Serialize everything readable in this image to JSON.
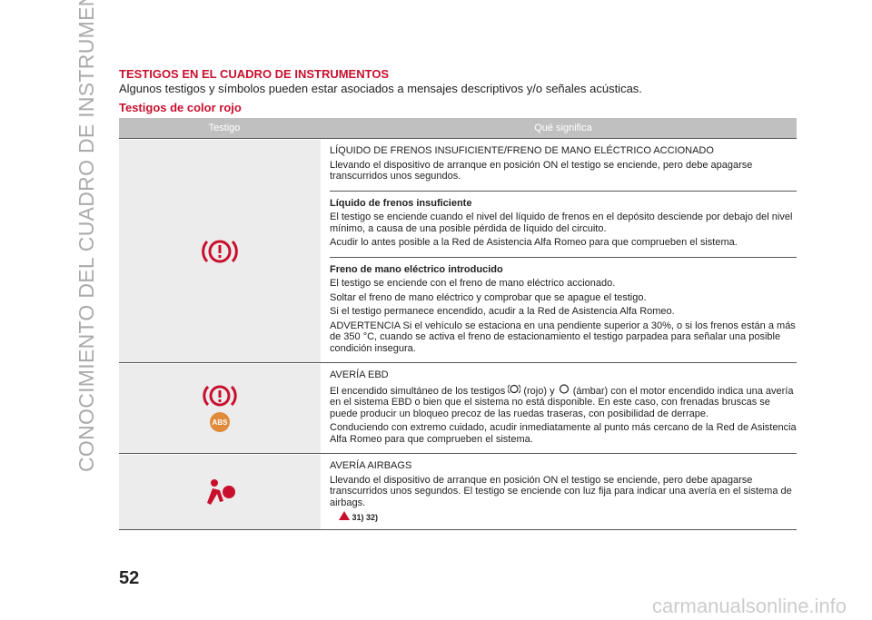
{
  "side_title": "CONOCIMIENTO DEL CUADRO DE INSTRUMENTOS",
  "header": {
    "title": "TESTIGOS EN EL CUADRO DE INSTRUMENTOS",
    "intro": "Algunos testigos y símbolos pueden estar asociados a mensajes descriptivos y/o señales acústicas.",
    "subtitle": "Testigos de color rojo"
  },
  "table": {
    "columns": [
      "Testigo",
      "Qué significa"
    ],
    "rows": [
      {
        "sections": [
          {
            "title": "LÍQUIDO DE FRENOS INSUFICIENTE/FRENO DE MANO ELÉCTRICO ACCIONADO",
            "paragraphs": [
              "Llevando el dispositivo de arranque en posición ON el testigo se enciende, pero debe apagarse transcurridos unos segundos."
            ]
          },
          {
            "title": "Líquido de frenos insuficiente",
            "paragraphs": [
              "El testigo se enciende cuando el nivel del líquido de frenos en el depósito desciende por debajo del nivel mínimo, a causa de una posible pérdida de líquido del circuito.",
              "Acudir lo antes posible a la Red de Asistencia Alfa Romeo para que comprueben el sistema."
            ]
          },
          {
            "title": "Freno de mano eléctrico introducido",
            "paragraphs": [
              "El testigo se enciende con el freno de mano eléctrico accionado.",
              "Soltar el freno de mano eléctrico y comprobar que se apague el testigo.",
              "Si el testigo permanece encendido, acudir a la Red de Asistencia Alfa Romeo.",
              "ADVERTENCIA Si el vehículo se estaciona en una pendiente superior a 30%, o si los frenos están a más de 350 °C, cuando se activa el freno de estacionamiento el testigo parpadea para señalar una posible condición insegura."
            ]
          }
        ]
      },
      {
        "sections": [
          {
            "title": "AVERÍA EBD",
            "paragraphs": [
              {
                "before": "El encendido simultáneo de los testigos",
                "middle": "(rojo) y",
                "after": "(ámbar) con el motor encendido indica una avería en el sistema EBD o bien que el sistema no está disponible. En este caso, con frenadas bruscas se puede producir un bloqueo precoz de las ruedas traseras, con posibilidad de derrape."
              },
              "Conduciendo con extremo cuidado, acudir inmediatamente al punto más cercano de la Red de Asistencia Alfa Romeo para que comprueben el sistema."
            ]
          }
        ]
      },
      {
        "sections": [
          {
            "title": "AVERÍA AIRBAGS",
            "paragraphs": [
              "Llevando el dispositivo de arranque en posición ON el testigo se enciende, pero debe apagarse transcurridos unos segundos. El testigo se enciende con luz fija para indicar una avería en el sistema de airbags."
            ],
            "note": "31) 32)"
          }
        ]
      }
    ]
  },
  "page_number": "52",
  "watermark": "carmanualsonline.info"
}
